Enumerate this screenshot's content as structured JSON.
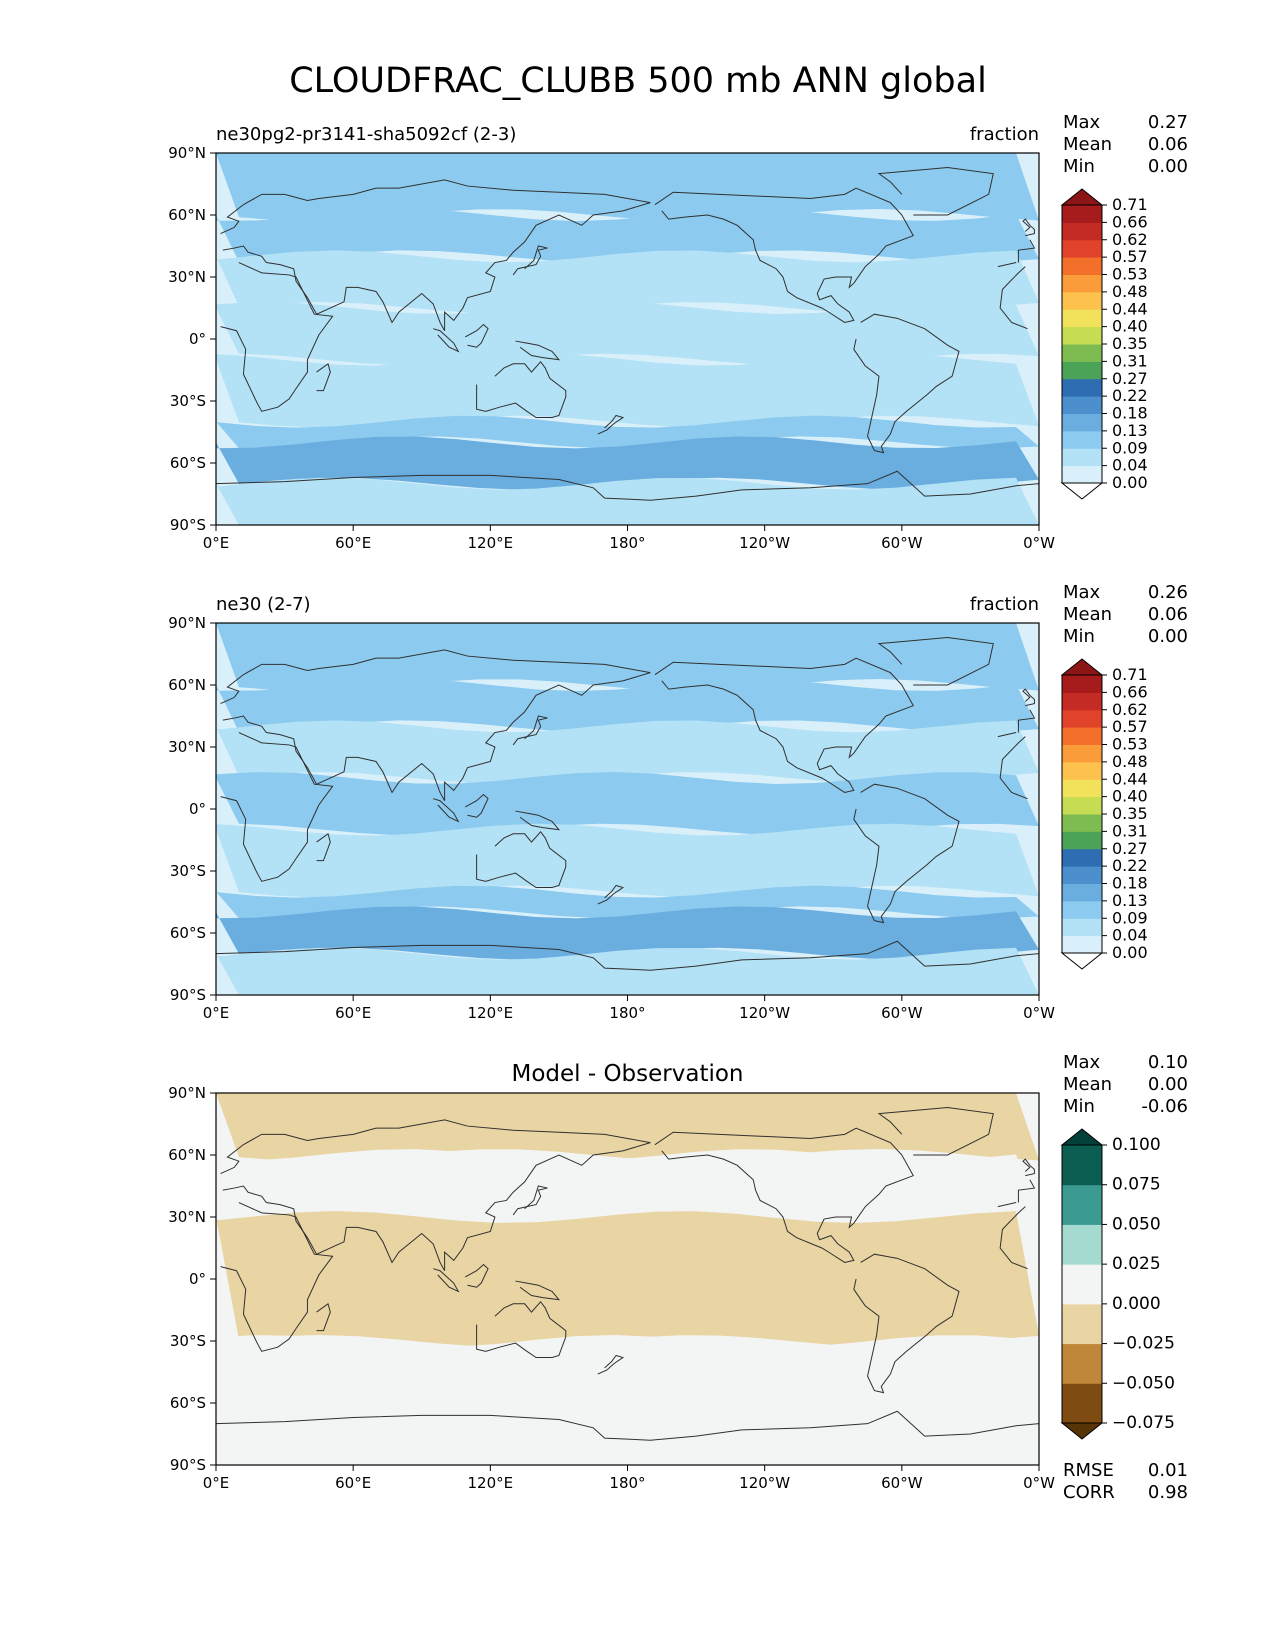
{
  "figure_title": "CLOUDFRAC_CLUBB 500 mb ANN global",
  "colors": {
    "ocean_base": "#dcefff",
    "continent_line": "#303030"
  },
  "chart_data": [
    {
      "type": "heatmap",
      "panel": "test",
      "title_left": "ne30pg2-pr3141-sha5092cf (2-3)",
      "title_center": "",
      "title_right": "fraction",
      "stats": [
        {
          "label": "Max",
          "value": "0.27"
        },
        {
          "label": "Mean",
          "value": "0.06"
        },
        {
          "label": "Min",
          "value": "0.00"
        }
      ],
      "xticks": [
        "0°E",
        "60°E",
        "120°E",
        "180°",
        "120°W",
        "60°W",
        "0°W"
      ],
      "yticks": [
        "90°N",
        "60°N",
        "30°N",
        "0°",
        "30°S",
        "60°S",
        "90°S"
      ],
      "lon_range": [
        0,
        360
      ],
      "lat_range": [
        -90,
        90
      ],
      "colorbar": {
        "extend": "both",
        "levels": [
          "0.00",
          "0.04",
          "0.09",
          "0.13",
          "0.18",
          "0.22",
          "0.27",
          "0.31",
          "0.35",
          "0.40",
          "0.44",
          "0.48",
          "0.53",
          "0.57",
          "0.62",
          "0.66",
          "0.71"
        ],
        "colors": [
          "#ffffff",
          "#d9f0fb",
          "#b3e1f5",
          "#8ccbef",
          "#6aaee0",
          "#4b8fcc",
          "#2f6db2",
          "#4aa356",
          "#7ebc52",
          "#c5dc53",
          "#f2e15a",
          "#fcc24d",
          "#f99c39",
          "#f2702a",
          "#e0432a",
          "#c42b25",
          "#a61b1b",
          "#8c1515"
        ]
      },
      "field_bands": [
        {
          "lat_from": 90,
          "lat_to": 60,
          "value": 0.1
        },
        {
          "lat_from": 60,
          "lat_to": 40,
          "value": 0.12
        },
        {
          "lat_from": 40,
          "lat_to": 15,
          "value": 0.07
        },
        {
          "lat_from": 15,
          "lat_to": -10,
          "value": 0.08
        },
        {
          "lat_from": -10,
          "lat_to": -40,
          "value": 0.05
        },
        {
          "lat_from": -40,
          "lat_to": -50,
          "value": 0.11
        },
        {
          "lat_from": -50,
          "lat_to": -70,
          "value": 0.16
        },
        {
          "lat_from": -70,
          "lat_to": -90,
          "value": 0.06
        }
      ]
    },
    {
      "type": "heatmap",
      "panel": "reference",
      "title_left": "ne30 (2-7)",
      "title_center": "",
      "title_right": "fraction",
      "stats": [
        {
          "label": "Max",
          "value": "0.26"
        },
        {
          "label": "Mean",
          "value": "0.06"
        },
        {
          "label": "Min",
          "value": "0.00"
        }
      ],
      "xticks": [
        "0°E",
        "60°E",
        "120°E",
        "180°",
        "120°W",
        "60°W",
        "0°W"
      ],
      "yticks": [
        "90°N",
        "60°N",
        "30°N",
        "0°",
        "30°S",
        "60°S",
        "90°S"
      ],
      "lon_range": [
        0,
        360
      ],
      "lat_range": [
        -90,
        90
      ],
      "colorbar": {
        "extend": "both",
        "levels": [
          "0.00",
          "0.04",
          "0.09",
          "0.13",
          "0.18",
          "0.22",
          "0.27",
          "0.31",
          "0.35",
          "0.40",
          "0.44",
          "0.48",
          "0.53",
          "0.57",
          "0.62",
          "0.66",
          "0.71"
        ],
        "colors": [
          "#ffffff",
          "#d9f0fb",
          "#b3e1f5",
          "#8ccbef",
          "#6aaee0",
          "#4b8fcc",
          "#2f6db2",
          "#4aa356",
          "#7ebc52",
          "#c5dc53",
          "#f2e15a",
          "#fcc24d",
          "#f99c39",
          "#f2702a",
          "#e0432a",
          "#c42b25",
          "#a61b1b",
          "#8c1515"
        ]
      },
      "field_bands": [
        {
          "lat_from": 90,
          "lat_to": 60,
          "value": 0.1
        },
        {
          "lat_from": 60,
          "lat_to": 40,
          "value": 0.12
        },
        {
          "lat_from": 40,
          "lat_to": 15,
          "value": 0.07
        },
        {
          "lat_from": 15,
          "lat_to": -10,
          "value": 0.09
        },
        {
          "lat_from": -10,
          "lat_to": -40,
          "value": 0.06
        },
        {
          "lat_from": -40,
          "lat_to": -50,
          "value": 0.12
        },
        {
          "lat_from": -50,
          "lat_to": -70,
          "value": 0.16
        },
        {
          "lat_from": -70,
          "lat_to": -90,
          "value": 0.06
        }
      ]
    },
    {
      "type": "heatmap",
      "panel": "difference",
      "title_left": "",
      "title_center": "Model - Observation",
      "title_right": "",
      "stats": [
        {
          "label": "Max",
          "value": "0.10"
        },
        {
          "label": "Mean",
          "value": "0.00"
        },
        {
          "label": "Min",
          "value": "-0.06"
        }
      ],
      "bottom_stats": [
        {
          "label": "RMSE",
          "value": "0.01"
        },
        {
          "label": "CORR",
          "value": "0.98"
        }
      ],
      "xticks": [
        "0°E",
        "60°E",
        "120°E",
        "180°",
        "120°W",
        "60°W",
        "0°W"
      ],
      "yticks": [
        "90°N",
        "60°N",
        "30°N",
        "0°",
        "30°S",
        "60°S",
        "90°S"
      ],
      "lon_range": [
        0,
        360
      ],
      "lat_range": [
        -90,
        90
      ],
      "colorbar": {
        "extend": "both",
        "levels": [
          "−0.075",
          "−0.050",
          "−0.025",
          "0.000",
          "0.025",
          "0.050",
          "0.075",
          "0.100"
        ],
        "colors": [
          "#573405",
          "#7e4b12",
          "#c0863a",
          "#e9d4a3",
          "#f3f5f4",
          "#a5dad0",
          "#3b9a91",
          "#0b5d52",
          "#04403a"
        ]
      },
      "field_bands": [
        {
          "lat_from": 90,
          "lat_to": 60,
          "value": -0.005
        },
        {
          "lat_from": 60,
          "lat_to": 30,
          "value": 0.005
        },
        {
          "lat_from": 30,
          "lat_to": -30,
          "value": -0.01
        },
        {
          "lat_from": -30,
          "lat_to": -60,
          "value": 0.005
        },
        {
          "lat_from": -60,
          "lat_to": -90,
          "value": 0.005
        }
      ]
    }
  ]
}
